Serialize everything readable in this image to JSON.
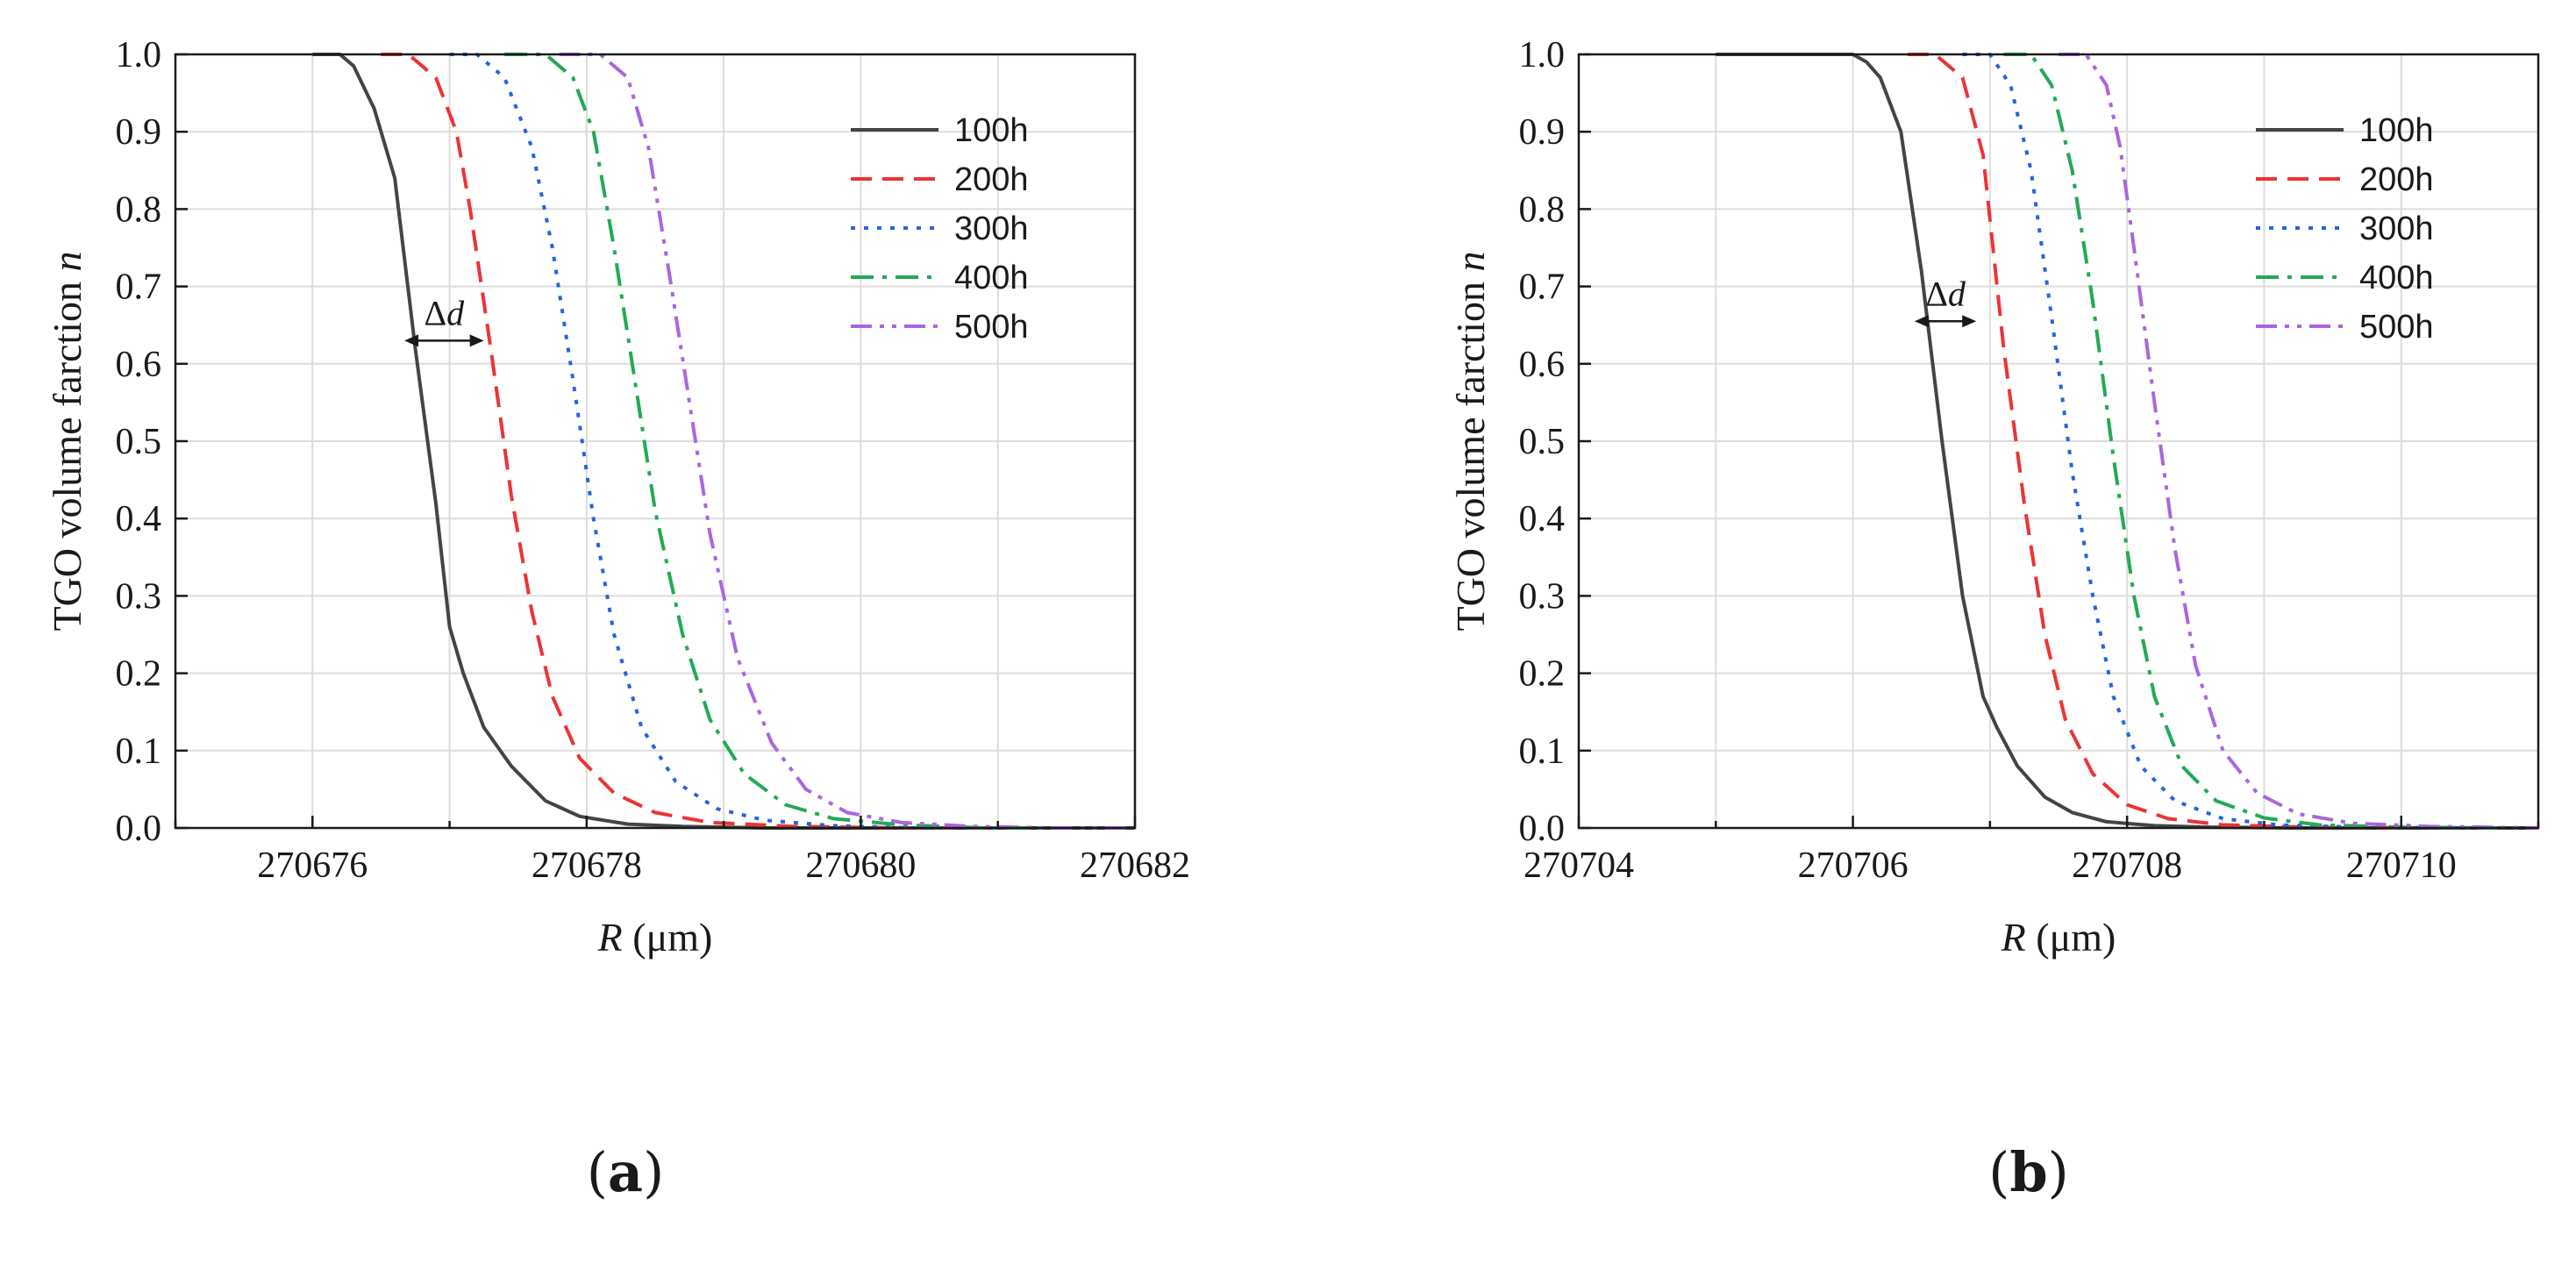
{
  "chart_data": [
    {
      "type": "line",
      "panel_label": "a",
      "xlabel_italic": "R",
      "xlabel_unit": " (μm)",
      "ylabel_main": "TGO volume farction ",
      "ylabel_italic": "n",
      "xlim": [
        270675,
        270682
      ],
      "ylim": [
        0,
        1.0
      ],
      "xticks": [
        270676,
        270678,
        270680,
        270682
      ],
      "xtick_labels": [
        "270676",
        "270678",
        "270680",
        "270682"
      ],
      "yticks": [
        0,
        0.1,
        0.2,
        0.3,
        0.4,
        0.5,
        0.6,
        0.7,
        0.8,
        0.9,
        1.0
      ],
      "ytick_labels": [
        "0.0",
        "0.1",
        "0.2",
        "0.3",
        "0.4",
        "0.5",
        "0.6",
        "0.7",
        "0.8",
        "0.9",
        "1.0"
      ],
      "grid": true,
      "legend_position": "top-right",
      "annotation": {
        "text_prefix": "Δ",
        "text_italic": "d",
        "x1": 270676.67,
        "x2": 270677.25,
        "y": 0.63
      },
      "series": [
        {
          "name": "100h",
          "color": "#444444",
          "dash": "solid",
          "x": [
            270676.0,
            270676.2,
            270676.3,
            270676.45,
            270676.6,
            270676.75,
            270676.9,
            270677.0,
            270677.1,
            270677.25,
            270677.45,
            270677.7,
            270677.95,
            270678.3,
            270678.7,
            270679.3,
            270680.0,
            270681.0,
            270682.0
          ],
          "y": [
            1.0,
            1.0,
            0.985,
            0.93,
            0.84,
            0.62,
            0.42,
            0.26,
            0.2,
            0.13,
            0.08,
            0.035,
            0.015,
            0.005,
            0.002,
            0.0,
            0.0,
            0.0,
            0.0
          ]
        },
        {
          "name": "200h",
          "color": "#ee3333",
          "dash": "dash",
          "x": [
            270676.5,
            270676.7,
            270676.9,
            270677.05,
            270677.15,
            270677.3,
            270677.45,
            270677.6,
            270677.75,
            270677.95,
            270678.2,
            270678.5,
            270678.9,
            270679.5,
            270680.3,
            270681.0
          ],
          "y": [
            1.0,
            1.0,
            0.97,
            0.9,
            0.8,
            0.62,
            0.43,
            0.28,
            0.17,
            0.09,
            0.045,
            0.02,
            0.007,
            0.002,
            0.0,
            0.0
          ]
        },
        {
          "name": "300h",
          "color": "#2266dd",
          "dash": "dot",
          "x": [
            270677.0,
            270677.2,
            270677.4,
            270677.6,
            270677.75,
            270677.9,
            270678.05,
            270678.2,
            270678.4,
            270678.65,
            270678.95,
            270679.3,
            270679.8,
            270680.4,
            270681.0
          ],
          "y": [
            1.0,
            1.0,
            0.97,
            0.88,
            0.75,
            0.58,
            0.4,
            0.25,
            0.13,
            0.06,
            0.025,
            0.01,
            0.003,
            0.0,
            0.0
          ]
        },
        {
          "name": "400h",
          "color": "#22aa55",
          "dash": "dashdot",
          "x": [
            270677.4,
            270677.7,
            270677.9,
            270678.05,
            270678.2,
            270678.35,
            270678.5,
            270678.7,
            270678.9,
            270679.15,
            270679.45,
            270679.8,
            270680.3,
            270680.9,
            270681.5
          ],
          "y": [
            1.0,
            1.0,
            0.97,
            0.9,
            0.75,
            0.58,
            0.41,
            0.25,
            0.14,
            0.07,
            0.03,
            0.012,
            0.004,
            0.0,
            0.0
          ]
        },
        {
          "name": "500h",
          "color": "#aa66dd",
          "dash": "dashdotdot",
          "x": [
            270677.8,
            270678.1,
            270678.3,
            270678.45,
            270678.6,
            270678.75,
            270678.9,
            270679.1,
            270679.35,
            270679.6,
            270679.9,
            270680.3,
            270680.8,
            270681.4,
            270682.0
          ],
          "y": [
            1.0,
            1.0,
            0.97,
            0.88,
            0.72,
            0.55,
            0.38,
            0.22,
            0.11,
            0.05,
            0.02,
            0.007,
            0.002,
            0.0,
            0.0
          ]
        }
      ]
    },
    {
      "type": "line",
      "panel_label": "b",
      "xlabel_italic": "R",
      "xlabel_unit": " (μm)",
      "ylabel_main": "TGO volume farction ",
      "ylabel_italic": "n",
      "xlim": [
        270704,
        270711
      ],
      "ylim": [
        0,
        1.0
      ],
      "xticks": [
        270704,
        270706,
        270708,
        270710
      ],
      "xtick_labels": [
        "270704",
        "270706",
        "270708",
        "270710"
      ],
      "yticks": [
        0,
        0.1,
        0.2,
        0.3,
        0.4,
        0.5,
        0.6,
        0.7,
        0.8,
        0.9,
        1.0
      ],
      "ytick_labels": [
        "0.0",
        "0.1",
        "0.2",
        "0.3",
        "0.4",
        "0.5",
        "0.6",
        "0.7",
        "0.8",
        "0.9",
        "1.0"
      ],
      "grid": true,
      "legend_position": "top-right",
      "annotation": {
        "text_prefix": "Δ",
        "text_italic": "d",
        "x1": 270706.45,
        "x2": 270706.9,
        "y": 0.655
      },
      "series": [
        {
          "name": "100h",
          "color": "#444444",
          "dash": "solid",
          "x": [
            270705.0,
            270706.0,
            270706.1,
            270706.2,
            270706.35,
            270706.5,
            270706.65,
            270706.8,
            270706.95,
            270707.05,
            270707.2,
            270707.4,
            270707.6,
            270707.85,
            270708.2,
            270708.6,
            270709.2,
            270710.0,
            270711.0
          ],
          "y": [
            1.0,
            1.0,
            0.99,
            0.97,
            0.9,
            0.72,
            0.5,
            0.3,
            0.17,
            0.13,
            0.08,
            0.04,
            0.02,
            0.008,
            0.003,
            0.001,
            0.0,
            0.0,
            0.0
          ]
        },
        {
          "name": "200h",
          "color": "#ee3333",
          "dash": "dash",
          "x": [
            270706.4,
            270706.6,
            270706.8,
            270706.95,
            270707.1,
            270707.25,
            270707.4,
            270707.55,
            270707.75,
            270708.0,
            270708.3,
            270708.7,
            270709.3,
            270710.0
          ],
          "y": [
            1.0,
            1.0,
            0.97,
            0.87,
            0.62,
            0.42,
            0.25,
            0.14,
            0.07,
            0.03,
            0.012,
            0.004,
            0.001,
            0.0
          ]
        },
        {
          "name": "300h",
          "color": "#2266dd",
          "dash": "dot",
          "x": [
            270706.8,
            270707.0,
            270707.15,
            270707.3,
            270707.45,
            270707.6,
            270707.75,
            270707.9,
            270708.1,
            270708.35,
            270708.7,
            270709.1,
            270709.7,
            270710.5
          ],
          "y": [
            1.0,
            1.0,
            0.96,
            0.85,
            0.66,
            0.46,
            0.3,
            0.17,
            0.08,
            0.035,
            0.012,
            0.004,
            0.001,
            0.0
          ]
        },
        {
          "name": "400h",
          "color": "#22aa55",
          "dash": "dashdot",
          "x": [
            270707.1,
            270707.3,
            270707.45,
            270707.6,
            270707.75,
            270707.9,
            270708.05,
            270708.2,
            270708.4,
            270708.65,
            270709.0,
            270709.4,
            270710.0,
            270710.7
          ],
          "y": [
            1.0,
            1.0,
            0.96,
            0.85,
            0.68,
            0.48,
            0.3,
            0.17,
            0.08,
            0.035,
            0.013,
            0.004,
            0.001,
            0.0
          ]
        },
        {
          "name": "500h",
          "color": "#aa66dd",
          "dash": "dashdotdot",
          "x": [
            270707.5,
            270707.7,
            270707.85,
            270707.95,
            270708.05,
            270708.2,
            270708.35,
            270708.5,
            270708.7,
            270708.95,
            270709.25,
            270709.65,
            270710.2,
            270711.0
          ],
          "y": [
            1.0,
            1.0,
            0.96,
            0.88,
            0.75,
            0.55,
            0.36,
            0.21,
            0.1,
            0.045,
            0.018,
            0.006,
            0.002,
            0.0
          ]
        }
      ]
    }
  ],
  "captions": {
    "a": "(a)",
    "b": "(b)"
  }
}
